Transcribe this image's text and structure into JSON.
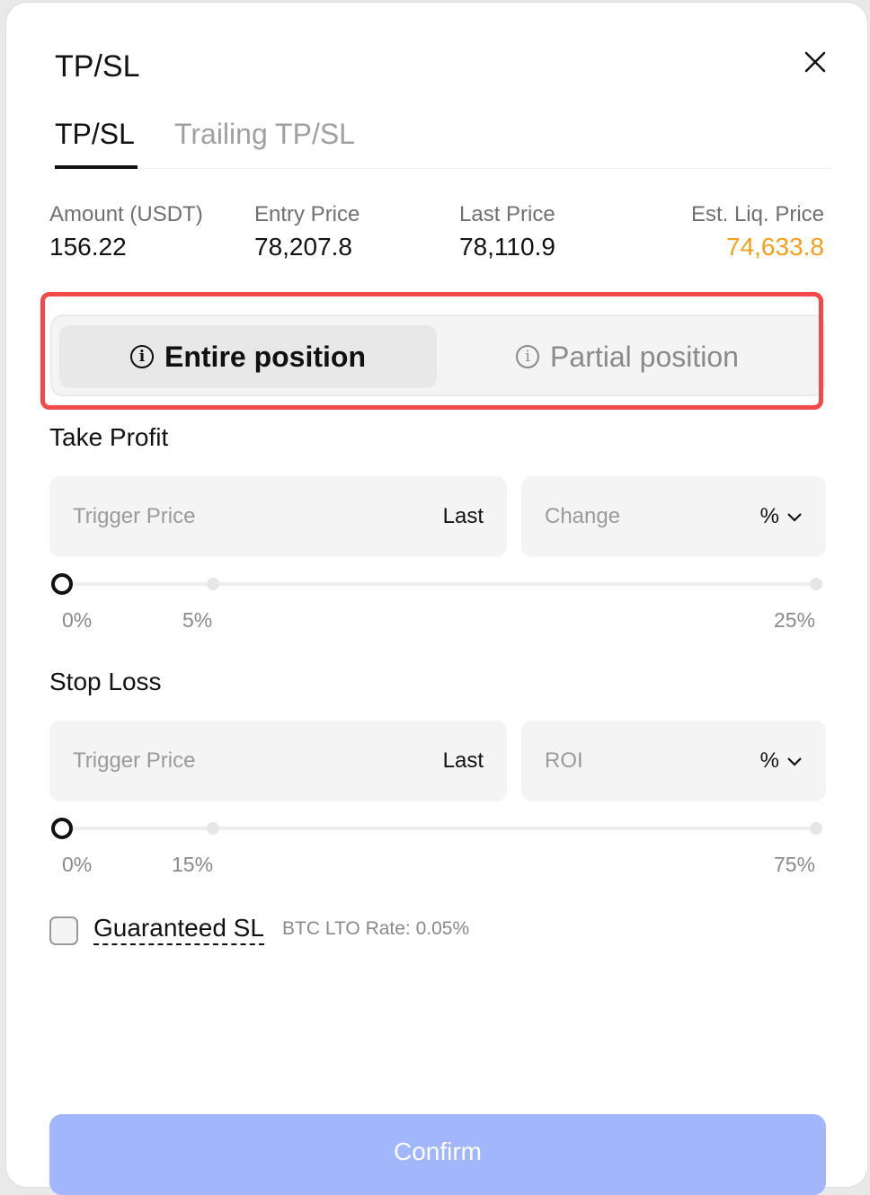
{
  "dialog": {
    "title": "TP/SL"
  },
  "tabs": [
    {
      "label": "TP/SL",
      "active": true
    },
    {
      "label": "Trailing TP/SL",
      "active": false
    }
  ],
  "stats": [
    {
      "label": "Amount (USDT)",
      "value": "156.22"
    },
    {
      "label": "Entry Price",
      "value": "78,207.8"
    },
    {
      "label": "Last Price",
      "value": "78,110.9"
    },
    {
      "label": "Est. Liq. Price",
      "value": "74,633.8",
      "color": "#f0a020"
    }
  ],
  "position_mode": {
    "options": [
      {
        "label": "Entire position",
        "selected": true
      },
      {
        "label": "Partial position",
        "selected": false
      }
    ],
    "icon": "info-icon"
  },
  "take_profit": {
    "label": "Take Profit",
    "trigger_placeholder": "Trigger Price",
    "trigger_suffix": "Last",
    "change_placeholder": "Change",
    "change_unit": "%",
    "slider_value": 0,
    "ticks": [
      "0%",
      "5%",
      "25%"
    ]
  },
  "stop_loss": {
    "label": "Stop Loss",
    "trigger_placeholder": "Trigger Price",
    "trigger_suffix": "Last",
    "change_placeholder": "ROI",
    "change_unit": "%",
    "slider_value": 0,
    "ticks": [
      "0%",
      "15%",
      "75%"
    ]
  },
  "guaranteed_sl": {
    "label": "Guaranteed SL",
    "checked": false,
    "rate": "BTC LTO Rate: 0.05%"
  },
  "confirm": {
    "label": "Confirm",
    "color": "#a1b6fb"
  }
}
